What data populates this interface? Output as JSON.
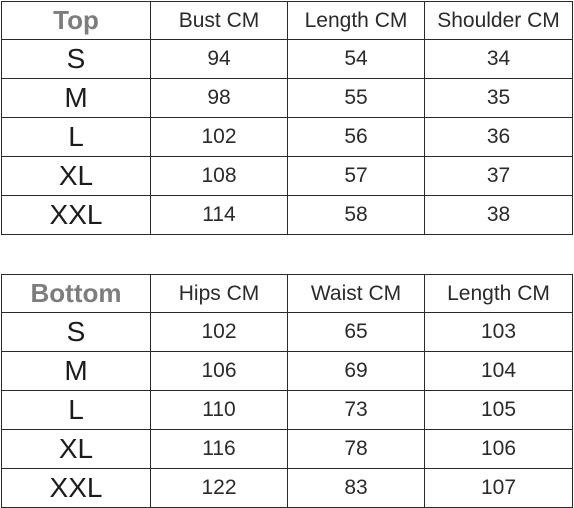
{
  "top": {
    "title": "Top",
    "headers": [
      "Bust CM",
      "Length CM",
      "Shoulder CM"
    ],
    "rows": [
      {
        "size": "S",
        "values": [
          "94",
          "54",
          "34"
        ]
      },
      {
        "size": "M",
        "values": [
          "98",
          "55",
          "35"
        ]
      },
      {
        "size": "L",
        "values": [
          "102",
          "56",
          "36"
        ]
      },
      {
        "size": "XL",
        "values": [
          "108",
          "57",
          "37"
        ]
      },
      {
        "size": "XXL",
        "values": [
          "114",
          "58",
          "38"
        ]
      }
    ]
  },
  "bottom": {
    "title": "Bottom",
    "headers": [
      "Hips CM",
      "Waist CM",
      "Length CM"
    ],
    "rows": [
      {
        "size": "S",
        "values": [
          "102",
          "65",
          "103"
        ]
      },
      {
        "size": "M",
        "values": [
          "106",
          "69",
          "104"
        ]
      },
      {
        "size": "L",
        "values": [
          "110",
          "73",
          "105"
        ]
      },
      {
        "size": "XL",
        "values": [
          "116",
          "78",
          "106"
        ]
      },
      {
        "size": "XXL",
        "values": [
          "122",
          "83",
          "107"
        ]
      }
    ]
  }
}
